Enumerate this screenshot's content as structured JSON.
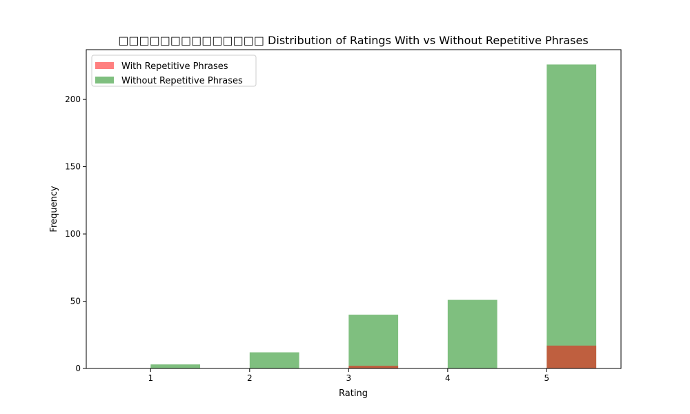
{
  "chart_data": {
    "type": "bar",
    "title": "Distribution of Ratings With vs Without Repetitive Phrases",
    "title_prefix": "□□□□□□□□□□□□□□",
    "xlabel": "Rating",
    "ylabel": "Frequency",
    "x_ticks": [
      1,
      2,
      3,
      4,
      5
    ],
    "y_ticks": [
      0,
      50,
      100,
      150,
      200
    ],
    "xlim": [
      0.35,
      5.75
    ],
    "ylim": [
      0,
      237
    ],
    "legend_position": "upper-left",
    "series": [
      {
        "name": "With Repetitive Phrases",
        "color": "#ff0000",
        "opacity": 0.5,
        "bins": [
          {
            "x0": 1.0,
            "x1": 1.5,
            "value": 0
          },
          {
            "x0": 2.0,
            "x1": 2.5,
            "value": 0
          },
          {
            "x0": 3.0,
            "x1": 3.5,
            "value": 2
          },
          {
            "x0": 4.0,
            "x1": 4.5,
            "value": 0
          },
          {
            "x0": 5.0,
            "x1": 5.5,
            "value": 17
          }
        ]
      },
      {
        "name": "Without Repetitive Phrases",
        "color": "#008000",
        "opacity": 0.5,
        "bins": [
          {
            "x0": 1.0,
            "x1": 1.5,
            "value": 3
          },
          {
            "x0": 2.0,
            "x1": 2.5,
            "value": 12
          },
          {
            "x0": 3.0,
            "x1": 3.5,
            "value": 40
          },
          {
            "x0": 4.0,
            "x1": 4.5,
            "value": 51
          },
          {
            "x0": 5.0,
            "x1": 5.5,
            "value": 226
          }
        ]
      }
    ]
  }
}
